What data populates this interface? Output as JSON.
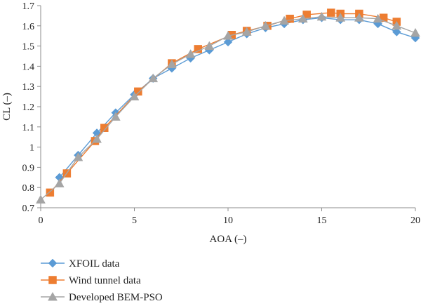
{
  "chart_data": {
    "type": "line",
    "title": "",
    "xlabel": "AOA (–)",
    "ylabel": "CL (–)",
    "xlim": [
      0,
      20
    ],
    "ylim": [
      0.7,
      1.7
    ],
    "xticks": [
      "0",
      "5",
      "10",
      "15",
      "20"
    ],
    "yticks": [
      "0.7",
      "0.8",
      "0.9",
      "1",
      "1.1",
      "1.2",
      "1.3",
      "1.4",
      "1.5",
      "1.6",
      "1.7"
    ],
    "grid": false,
    "legend_position": "bottom-left",
    "series": [
      {
        "name": "XFOIL data",
        "color": "#5b9bd5",
        "marker": "diamond",
        "x": [
          1,
          2,
          3,
          4,
          5,
          6,
          7,
          8,
          9,
          10,
          11,
          12,
          13,
          14,
          15,
          16,
          17,
          18,
          19,
          20
        ],
        "y": [
          0.85,
          0.96,
          1.07,
          1.17,
          1.26,
          1.34,
          1.39,
          1.44,
          1.48,
          1.52,
          1.56,
          1.59,
          1.61,
          1.63,
          1.64,
          1.63,
          1.63,
          1.61,
          1.57,
          1.54
        ]
      },
      {
        "name": "Wind tunnel data",
        "color": "#ed7d31",
        "marker": "square",
        "x": [
          0.5,
          1.4,
          2.9,
          3.4,
          5.2,
          7,
          8.4,
          10.2,
          11,
          12.1,
          13.3,
          14.2,
          15.5,
          16,
          17,
          18.3,
          19
        ],
        "y": [
          0.775,
          0.87,
          1.03,
          1.095,
          1.275,
          1.415,
          1.485,
          1.555,
          1.575,
          1.6,
          1.635,
          1.655,
          1.665,
          1.66,
          1.66,
          1.64,
          1.62
        ]
      },
      {
        "name": "Developed BEM-PSO",
        "color": "#a5a5a5",
        "marker": "triangle",
        "x": [
          0,
          1,
          2,
          3,
          4,
          5,
          6,
          7,
          8,
          9,
          10,
          11,
          12,
          13,
          14,
          15,
          16,
          17,
          18,
          19,
          20
        ],
        "y": [
          0.74,
          0.82,
          0.95,
          1.04,
          1.15,
          1.25,
          1.34,
          1.41,
          1.46,
          1.5,
          1.55,
          1.57,
          1.6,
          1.625,
          1.635,
          1.645,
          1.64,
          1.64,
          1.635,
          1.6,
          1.565
        ]
      }
    ]
  }
}
